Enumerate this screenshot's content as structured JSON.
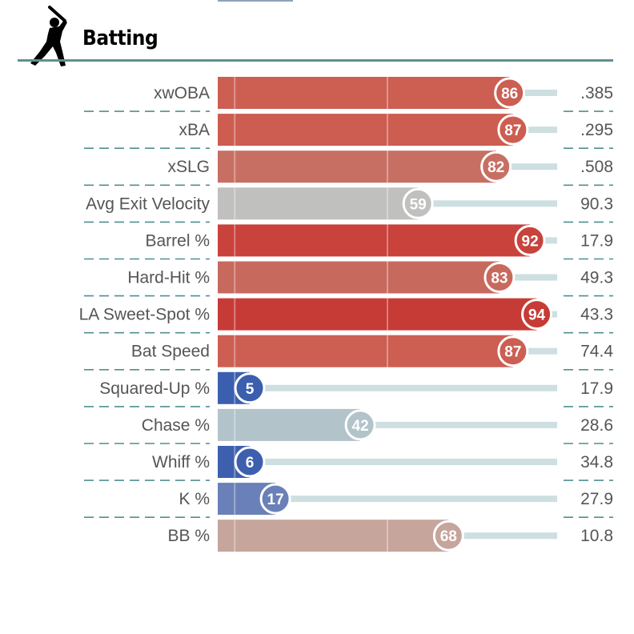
{
  "section": {
    "title": "Batting",
    "icon": "batter-silhouette-icon"
  },
  "chart_data": {
    "type": "bar",
    "orientation": "horizontal",
    "percentile_range": [
      0,
      100
    ],
    "metrics": [
      {
        "label": "xwOBA",
        "percentile": 86,
        "value": ".385",
        "color": "#cc5e52"
      },
      {
        "label": "xBA",
        "percentile": 87,
        "value": ".295",
        "color": "#cd5d50"
      },
      {
        "label": "xSLG",
        "percentile": 82,
        "value": ".508",
        "color": "#c86f63"
      },
      {
        "label": "Avg Exit Velocity",
        "percentile": 59,
        "value": "90.3",
        "color": "#c0c1bf"
      },
      {
        "label": "Barrel %",
        "percentile": 92,
        "value": "17.9",
        "color": "#c9423c"
      },
      {
        "label": "Hard-Hit %",
        "percentile": 83,
        "value": "49.3",
        "color": "#c8695e"
      },
      {
        "label": "LA Sweet-Spot %",
        "percentile": 94,
        "value": "43.3",
        "color": "#c73b36"
      },
      {
        "label": "Bat Speed",
        "percentile": 87,
        "value": "74.4",
        "color": "#cc5e52"
      },
      {
        "label": "Squared-Up %",
        "percentile": 5,
        "value": "17.9",
        "color": "#3a5fae"
      },
      {
        "label": "Chase %",
        "percentile": 42,
        "value": "28.6",
        "color": "#b3c3ca"
      },
      {
        "label": "Whiff %",
        "percentile": 6,
        "value": "34.8",
        "color": "#3d5fae"
      },
      {
        "label": "K %",
        "percentile": 17,
        "value": "27.9",
        "color": "#6a80b8"
      },
      {
        "label": "BB %",
        "percentile": 68,
        "value": "10.8",
        "color": "#c6a59c"
      }
    ]
  }
}
